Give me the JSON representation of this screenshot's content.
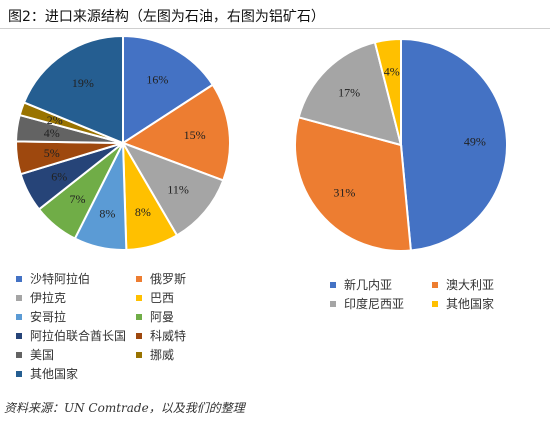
{
  "figure": {
    "title": "图2：进口来源结构（左图为石油，右图为铝矿石）",
    "source": "资料来源：UN Comtrade，以及我们的整理"
  },
  "chart_data": [
    {
      "type": "pie",
      "start": "12 o'clock, clockwise",
      "slices": [
        {
          "name": "沙特阿拉伯",
          "value": 16,
          "label": "16%",
          "color": "#4472C4"
        },
        {
          "name": "俄罗斯",
          "value": 15,
          "label": "15%",
          "color": "#ED7D31"
        },
        {
          "name": "伊拉克",
          "value": 11,
          "label": "11%",
          "color": "#A5A5A5"
        },
        {
          "name": "巴西",
          "value": 8,
          "label": "8%",
          "color": "#FFC000"
        },
        {
          "name": "安哥拉",
          "value": 8,
          "label": "8%",
          "color": "#5B9BD5"
        },
        {
          "name": "阿曼",
          "value": 7,
          "label": "7%",
          "color": "#70AD47"
        },
        {
          "name": "阿拉伯联合酋长国",
          "value": 6,
          "label": "6%",
          "color": "#264478"
        },
        {
          "name": "科威特",
          "value": 5,
          "label": "5%",
          "color": "#9E480E"
        },
        {
          "name": "美国",
          "value": 4,
          "label": "4%",
          "color": "#636363"
        },
        {
          "name": "挪威",
          "value": 2,
          "label": "2%",
          "color": "#997300"
        },
        {
          "name": "其他国家",
          "value": 19,
          "label": "19%",
          "color": "#255E91"
        }
      ],
      "legend_position": "bottom"
    },
    {
      "type": "pie",
      "start": "12 o'clock, clockwise",
      "slices": [
        {
          "name": "新几内亚",
          "value": 49,
          "label": "49%",
          "color": "#4472C4"
        },
        {
          "name": "澳大利亚",
          "value": 31,
          "label": "31%",
          "color": "#ED7D31"
        },
        {
          "name": "印度尼西亚",
          "value": 17,
          "label": "17%",
          "color": "#A5A5A5"
        },
        {
          "name": "其他国家",
          "value": 4,
          "label": "4%",
          "color": "#FFC000"
        }
      ],
      "legend_position": "bottom"
    }
  ]
}
